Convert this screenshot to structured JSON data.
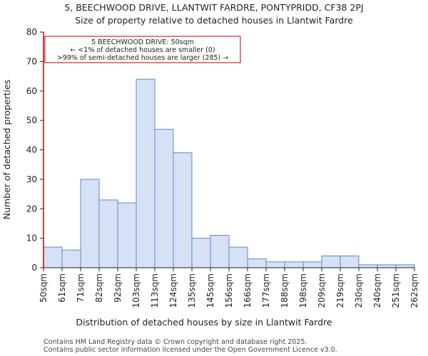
{
  "chart_data": {
    "type": "bar",
    "title": "5, BEECHWOOD DRIVE, LLANTWIT FARDRE, PONTYPRIDD, CF38 2PJ",
    "subtitle": "Size of property relative to detached houses in Llantwit Fardre",
    "xlabel": "Distribution of detached houses by size in Llantwit Fardre",
    "ylabel": "Number of detached properties",
    "ylim": [
      0,
      80
    ],
    "yticks": [
      0,
      10,
      20,
      30,
      40,
      50,
      60,
      70,
      80
    ],
    "bin_edges": [
      "50sqm",
      "61sqm",
      "71sqm",
      "82sqm",
      "92sqm",
      "103sqm",
      "113sqm",
      "124sqm",
      "135sqm",
      "145sqm",
      "156sqm",
      "166sqm",
      "177sqm",
      "188sqm",
      "198sqm",
      "209sqm",
      "219sqm",
      "230sqm",
      "240sqm",
      "251sqm",
      "262sqm"
    ],
    "values": [
      7,
      6,
      30,
      23,
      22,
      64,
      47,
      39,
      10,
      11,
      7,
      3,
      2,
      2,
      2,
      4,
      4,
      1,
      1,
      1
    ],
    "bar_color": "#d6e1f5",
    "bar_edge_color": "#5b8ac6",
    "marker": {
      "value_label": "50sqm",
      "color": "#c00000"
    },
    "annotation": {
      "line1": "5 BEECHWOOD DRIVE: 50sqm",
      "line2": "← <1% of detached houses are smaller (0)",
      "line3": ">99% of semi-detached houses are larger (285) →",
      "border_color": "#c00000"
    }
  },
  "footer": {
    "line1": "Contains HM Land Registry data © Crown copyright and database right 2025.",
    "line2": "Contains public sector information licensed under the Open Government Licence v3.0."
  }
}
